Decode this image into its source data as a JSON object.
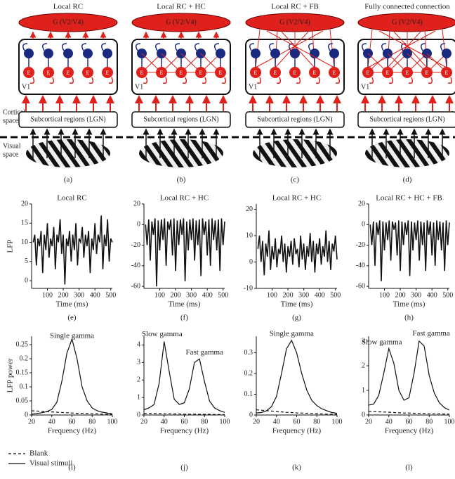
{
  "diagrams": [
    {
      "title": "Local RC",
      "top": "G (V2/V4)",
      "region": "V1",
      "neuron": "E",
      "bottom": "Subcortical regions (LGN)",
      "label": "(a)"
    },
    {
      "title": "Local RC + HC",
      "top": "G (V2/V4)",
      "region": "V1",
      "neuron": "E",
      "bottom": "Subcortical regions (LGN)",
      "label": "(b)"
    },
    {
      "title": "Local RC + FB",
      "top": "G (V2/V4)",
      "region": "V1",
      "neuron": "E",
      "bottom": "Subcortical regions (LGN)",
      "label": "(c)"
    },
    {
      "title": "Fully connected connection",
      "top": "G (V2/V4)",
      "region": "V1",
      "neuron": "E",
      "bottom": "Subcortical regions (LGN)",
      "label": "(d)"
    }
  ],
  "side_labels": [
    [
      "Cortical",
      "space"
    ],
    [
      "Visual",
      "space"
    ]
  ],
  "chart_data": [
    {
      "type": "line",
      "title": "Local RC",
      "label": "(e)",
      "xlabel": "Time (ms)",
      "ylabel": "LFP",
      "xlim": [
        0,
        510
      ],
      "ylim": [
        -2,
        20
      ],
      "xticks": [
        100,
        200,
        300,
        400,
        500
      ],
      "yticks": [
        0,
        5,
        10,
        15,
        20
      ],
      "x": [
        10,
        20,
        30,
        40,
        50,
        60,
        70,
        80,
        90,
        100,
        110,
        120,
        130,
        140,
        150,
        160,
        170,
        180,
        190,
        200,
        210,
        220,
        230,
        240,
        250,
        260,
        270,
        280,
        290,
        300,
        310,
        320,
        330,
        340,
        350,
        360,
        370,
        380,
        390,
        400,
        410,
        420,
        430,
        440,
        450,
        460,
        470,
        480,
        490,
        500,
        510
      ],
      "series": [
        {
          "color": "#111111",
          "values": [
            10,
            12,
            4,
            11,
            9,
            13,
            2,
            12,
            8,
            15,
            6,
            11,
            9,
            14,
            3,
            12,
            10,
            16,
            7,
            12,
            -1,
            11,
            9,
            13,
            5,
            12,
            8,
            15,
            4,
            11,
            10,
            14,
            6,
            12,
            9,
            13,
            2,
            11,
            8,
            15,
            7,
            12,
            10,
            17,
            3,
            12,
            9,
            16,
            5,
            11,
            10
          ]
        }
      ]
    },
    {
      "type": "line",
      "title": "Local RC + HC",
      "label": "(f)",
      "xlabel": "Time (ms)",
      "xlim": [
        0,
        510
      ],
      "ylim": [
        -62,
        20
      ],
      "xticks": [
        100,
        200,
        300,
        400,
        500
      ],
      "yticks": [
        -60,
        -40,
        -20,
        0,
        20
      ],
      "x": [
        10,
        20,
        30,
        40,
        50,
        60,
        70,
        80,
        90,
        100,
        110,
        120,
        130,
        140,
        150,
        160,
        170,
        180,
        190,
        200,
        210,
        220,
        230,
        240,
        250,
        260,
        270,
        280,
        290,
        300,
        310,
        320,
        330,
        340,
        350,
        360,
        370,
        380,
        390,
        400,
        410,
        420,
        430,
        440,
        450,
        460,
        470,
        480,
        490,
        500,
        510
      ],
      "series": [
        {
          "color": "#111111",
          "values": [
            0,
            -20,
            5,
            -35,
            3,
            -10,
            6,
            -60,
            4,
            -25,
            5,
            -15,
            6,
            -40,
            3,
            -5,
            5,
            -30,
            6,
            -45,
            4,
            -20,
            5,
            -10,
            6,
            -55,
            3,
            -25,
            5,
            -15,
            6,
            -35,
            4,
            -20,
            5,
            -50,
            6,
            -10,
            3,
            -30,
            5,
            -40,
            6,
            -15,
            4,
            -25,
            5,
            -45,
            6,
            -20,
            3
          ]
        }
      ]
    },
    {
      "type": "line",
      "title": "Local RC + HC",
      "label": "(g)",
      "xlabel": "Time (ms)",
      "xlim": [
        0,
        510
      ],
      "ylim": [
        -10,
        22
      ],
      "xticks": [
        100,
        200,
        300,
        400,
        500
      ],
      "yticks": [
        -10,
        0,
        10,
        20
      ],
      "x": [
        10,
        20,
        30,
        40,
        50,
        60,
        70,
        80,
        90,
        100,
        110,
        120,
        130,
        140,
        150,
        160,
        170,
        180,
        190,
        200,
        210,
        220,
        230,
        240,
        250,
        260,
        270,
        280,
        290,
        300,
        310,
        320,
        330,
        340,
        350,
        360,
        370,
        380,
        390,
        400,
        410,
        420,
        430,
        440,
        450,
        460,
        470,
        480,
        490,
        500,
        510
      ],
      "series": [
        {
          "color": "#111111",
          "values": [
            5,
            10,
            0,
            8,
            -5,
            7,
            2,
            12,
            -3,
            6,
            1,
            9,
            -2,
            5,
            3,
            10,
            0,
            7,
            -4,
            6,
            2,
            8,
            -1,
            9,
            3,
            5,
            -2,
            10,
            1,
            7,
            -3,
            6,
            2,
            11,
            0,
            8,
            -4,
            7,
            3,
            9,
            -1,
            6,
            2,
            12,
            0,
            8,
            -3,
            7,
            4,
            10,
            1
          ]
        }
      ]
    },
    {
      "type": "line",
      "title": "Local RC + HC + FB",
      "label": "(h)",
      "xlabel": "Time (ms)",
      "xlim": [
        0,
        510
      ],
      "ylim": [
        -62,
        20
      ],
      "xticks": [
        100,
        200,
        300,
        400,
        500
      ],
      "yticks": [
        -60,
        -40,
        -20,
        0,
        20
      ],
      "x": [
        10,
        20,
        30,
        40,
        50,
        60,
        70,
        80,
        90,
        100,
        110,
        120,
        130,
        140,
        150,
        160,
        170,
        180,
        190,
        200,
        210,
        220,
        230,
        240,
        250,
        260,
        270,
        280,
        290,
        300,
        310,
        320,
        330,
        340,
        350,
        360,
        370,
        380,
        390,
        400,
        410,
        420,
        430,
        440,
        450,
        460,
        470,
        480,
        490,
        500,
        510
      ],
      "series": [
        {
          "color": "#111111",
          "values": [
            0,
            -20,
            3,
            -40,
            2,
            -10,
            4,
            -55,
            3,
            -25,
            2,
            -15,
            4,
            -35,
            3,
            -5,
            2,
            -30,
            4,
            -45,
            3,
            -20,
            2,
            -10,
            4,
            -50,
            3,
            -25,
            2,
            -15,
            4,
            -35,
            3,
            -20,
            2,
            -45,
            4,
            -10,
            3,
            -30,
            2,
            -40,
            4,
            -15,
            3,
            -25,
            2,
            -45,
            4,
            -20,
            2
          ]
        }
      ]
    },
    {
      "type": "line",
      "label": "(i)",
      "xlabel": "Frequency (Hz)",
      "ylabel": "LFP power",
      "annotations": [
        "Single gamma"
      ],
      "legend": "bottom-left",
      "xlim": [
        20,
        100
      ],
      "ylim": [
        0,
        0.28
      ],
      "xticks": [
        20,
        40,
        60,
        80,
        100
      ],
      "yticks": [
        0,
        0.05,
        0.1,
        0.15,
        0.2,
        0.25
      ],
      "x": [
        20,
        25,
        30,
        35,
        40,
        45,
        50,
        55,
        60,
        65,
        70,
        75,
        80,
        85,
        90,
        95,
        100
      ],
      "series": [
        {
          "name": "Blank",
          "color": "#111111",
          "dash": true,
          "values": [
            0.015,
            0.014,
            0.013,
            0.012,
            0.011,
            0.01,
            0.009,
            0.008,
            0.007,
            0.006,
            0.006,
            0.005,
            0.004,
            0.004,
            0.003,
            0.003,
            0.002
          ]
        },
        {
          "name": "Visual stimuli",
          "color": "#111111",
          "values": [
            0.003,
            0.005,
            0.008,
            0.012,
            0.02,
            0.045,
            0.12,
            0.22,
            0.27,
            0.2,
            0.1,
            0.05,
            0.025,
            0.015,
            0.01,
            0.007,
            0.004
          ]
        }
      ]
    },
    {
      "type": "line",
      "label": "(j)",
      "xlabel": "Frequency (Hz)",
      "annotations": [
        "Slow gamma",
        "Fast gamma"
      ],
      "xlim": [
        20,
        100
      ],
      "ylim": [
        0,
        4.5
      ],
      "xticks": [
        20,
        40,
        60,
        80,
        100
      ],
      "yticks": [
        0,
        1,
        2,
        3,
        4
      ],
      "x": [
        20,
        25,
        30,
        35,
        40,
        45,
        50,
        55,
        60,
        65,
        70,
        75,
        80,
        85,
        90,
        95,
        100
      ],
      "series": [
        {
          "color": "#111111",
          "dash": true,
          "values": [
            0.1,
            0.09,
            0.08,
            0.08,
            0.07,
            0.07,
            0.06,
            0.06,
            0.05,
            0.05,
            0.05,
            0.04,
            0.04,
            0.04,
            0.03,
            0.03,
            0.03
          ]
        },
        {
          "color": "#111111",
          "values": [
            0.3,
            0.4,
            0.6,
            1.8,
            4.2,
            2.5,
            0.9,
            0.6,
            0.7,
            1.5,
            3.0,
            3.2,
            1.9,
            0.8,
            0.4,
            0.25,
            0.15
          ]
        }
      ]
    },
    {
      "type": "line",
      "label": "(k)",
      "xlabel": "Frequency (Hz)",
      "annotations": [
        "Single gamma"
      ],
      "xlim": [
        20,
        100
      ],
      "ylim": [
        0,
        0.38
      ],
      "xticks": [
        20,
        40,
        60,
        80,
        100
      ],
      "yticks": [
        0,
        0.1,
        0.2,
        0.3
      ],
      "x": [
        20,
        25,
        30,
        35,
        40,
        45,
        50,
        55,
        60,
        65,
        70,
        75,
        80,
        85,
        90,
        95,
        100
      ],
      "series": [
        {
          "color": "#111111",
          "dash": true,
          "values": [
            0.025,
            0.023,
            0.021,
            0.019,
            0.017,
            0.015,
            0.013,
            0.012,
            0.01,
            0.009,
            0.008,
            0.007,
            0.006,
            0.005,
            0.004,
            0.004,
            0.003
          ]
        },
        {
          "color": "#111111",
          "values": [
            0.01,
            0.012,
            0.02,
            0.04,
            0.09,
            0.2,
            0.32,
            0.36,
            0.3,
            0.2,
            0.12,
            0.07,
            0.045,
            0.03,
            0.02,
            0.012,
            0.008
          ]
        }
      ]
    },
    {
      "type": "line",
      "label": "(l)",
      "xlabel": "Frequency (Hz)",
      "annotations": [
        "Slow gamma",
        "Fast gamma"
      ],
      "xlim": [
        20,
        100
      ],
      "ylim": [
        0,
        3.2
      ],
      "xticks": [
        20,
        40,
        60,
        80,
        100
      ],
      "yticks": [
        0,
        1,
        2,
        3
      ],
      "x": [
        20,
        25,
        30,
        35,
        40,
        45,
        50,
        55,
        60,
        65,
        70,
        75,
        80,
        85,
        90,
        95,
        100
      ],
      "series": [
        {
          "color": "#111111",
          "dash": true,
          "values": [
            0.15,
            0.14,
            0.13,
            0.12,
            0.11,
            0.1,
            0.09,
            0.08,
            0.08,
            0.07,
            0.06,
            0.06,
            0.05,
            0.05,
            0.05,
            0.04,
            0.04
          ]
        },
        {
          "color": "#111111",
          "values": [
            0.4,
            0.45,
            0.8,
            1.7,
            2.7,
            2.1,
            1.0,
            0.6,
            0.7,
            1.7,
            3.0,
            2.8,
            1.6,
            0.9,
            0.5,
            0.3,
            0.2
          ]
        }
      ]
    }
  ]
}
